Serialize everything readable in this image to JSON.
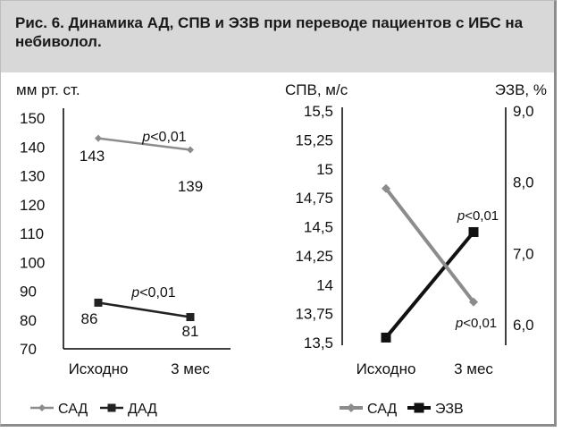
{
  "figure": {
    "title": "Рис. 6. Динамика АД, СПВ и ЭЗВ при переводе пациентов с ИБС на небиволол."
  },
  "colors": {
    "sad": "#8c8c8c",
    "dad": "#222222",
    "ezv": "#111111",
    "axis": "#000000"
  },
  "chart_data": [
    {
      "type": "line",
      "ylabel": "мм рт. ст.",
      "ylim": [
        70,
        150
      ],
      "yticks": [
        "150",
        "140",
        "130",
        "120",
        "110",
        "100",
        "90",
        "80",
        "70"
      ],
      "categories": [
        "Исходно",
        "3 мес"
      ],
      "series": [
        {
          "name": "САД",
          "values": [
            143,
            139
          ],
          "labels": [
            "143",
            "139"
          ],
          "p_label": "p<0,01"
        },
        {
          "name": "ДАД",
          "values": [
            86,
            81
          ],
          "labels": [
            "86",
            "81"
          ],
          "p_label": "p<0,01"
        }
      ],
      "legend": [
        "САД",
        "ДАД"
      ],
      "legend_position": "bottom"
    },
    {
      "type": "line",
      "ylabel_left": "СПВ, м/с",
      "ylabel_right": "ЭЗВ, %",
      "ylim_left": [
        13.5,
        15.5
      ],
      "ylim_right": [
        5.75,
        9.0
      ],
      "yticks_left": [
        "15,5",
        "15,25",
        "15",
        "14,75",
        "14,5",
        "14,25",
        "14",
        "13,75",
        "13,5"
      ],
      "yticks_right": [
        "9,0",
        "8,0",
        "7,0",
        "6,0"
      ],
      "categories": [
        "Исходно",
        "3 мес"
      ],
      "series": [
        {
          "name": "САД",
          "axis": "left",
          "values": [
            14.83,
            13.85
          ],
          "p_label": "p<0,01"
        },
        {
          "name": "ЭЗВ",
          "axis": "right",
          "values": [
            5.82,
            7.3
          ],
          "p_label": "p<0,01"
        }
      ],
      "legend": [
        "САД",
        "ЭЗВ"
      ],
      "legend_position": "bottom"
    }
  ]
}
